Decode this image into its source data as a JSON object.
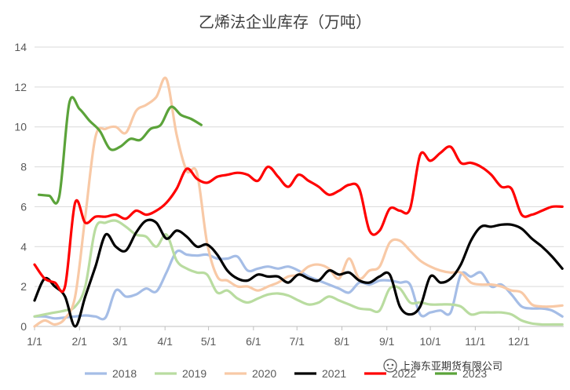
{
  "chart_data": {
    "type": "line",
    "title": "乙烯法企业库存（万吨）",
    "xlabel": "",
    "ylabel": "",
    "ylim": [
      0,
      14
    ],
    "yticks": [
      0,
      2,
      4,
      6,
      8,
      10,
      12,
      14
    ],
    "xlim": [
      0,
      365
    ],
    "xticks": [
      {
        "label": "1/1",
        "day": 0
      },
      {
        "label": "2/1",
        "day": 31
      },
      {
        "label": "3/1",
        "day": 59
      },
      {
        "label": "4/1",
        "day": 90
      },
      {
        "label": "5/1",
        "day": 120
      },
      {
        "label": "6/1",
        "day": 151
      },
      {
        "label": "7/1",
        "day": 181
      },
      {
        "label": "8/1",
        "day": 212
      },
      {
        "label": "9/1",
        "day": 243
      },
      {
        "label": "10/1",
        "day": 273
      },
      {
        "label": "11/1",
        "day": 304
      },
      {
        "label": "12/1",
        "day": 334
      }
    ],
    "grid": "horizontal",
    "legend_position": "bottom",
    "series": [
      {
        "name": "2018",
        "color": "#a5bde6",
        "x": [
          0,
          7,
          14,
          21,
          28,
          35,
          42,
          49,
          56,
          63,
          70,
          77,
          84,
          91,
          98,
          105,
          112,
          119,
          126,
          133,
          140,
          147,
          154,
          161,
          168,
          175,
          182,
          189,
          196,
          203,
          210,
          217,
          224,
          231,
          238,
          245,
          252,
          259,
          266,
          273,
          280,
          287,
          294,
          301,
          308,
          315,
          322,
          329,
          336,
          343,
          350,
          357,
          364
        ],
        "y": [
          0.5,
          0.5,
          0.4,
          0.45,
          0.5,
          0.55,
          0.5,
          0.45,
          1.8,
          1.5,
          1.6,
          1.9,
          1.75,
          2.7,
          3.75,
          3.6,
          3.55,
          3.6,
          3.4,
          3.4,
          3.5,
          2.8,
          2.9,
          3.0,
          2.9,
          3.0,
          2.8,
          2.5,
          2.3,
          2.1,
          1.9,
          1.7,
          2.2,
          2.1,
          2.3,
          2.3,
          2.2,
          2.1,
          0.6,
          0.7,
          0.8,
          0.7,
          2.6,
          2.5,
          2.7,
          2.0,
          2.1,
          1.6,
          1.0,
          0.9,
          0.9,
          0.8,
          0.5
        ]
      },
      {
        "name": "2019",
        "color": "#b9dca0",
        "x": [
          0,
          7,
          14,
          21,
          28,
          35,
          42,
          49,
          56,
          63,
          70,
          77,
          84,
          91,
          98,
          105,
          112,
          119,
          126,
          133,
          140,
          147,
          154,
          161,
          168,
          175,
          182,
          189,
          196,
          203,
          210,
          217,
          224,
          231,
          238,
          245,
          252,
          259,
          266,
          273,
          280,
          287,
          294,
          301,
          308,
          315,
          322,
          329,
          336,
          343,
          350,
          357,
          364
        ],
        "y": [
          0.5,
          0.6,
          0.7,
          0.8,
          1.0,
          2.0,
          4.9,
          5.2,
          5.3,
          5.0,
          4.6,
          4.5,
          4.0,
          4.6,
          3.3,
          2.9,
          2.7,
          2.6,
          1.7,
          1.8,
          1.4,
          1.2,
          1.4,
          1.6,
          1.65,
          1.55,
          1.3,
          1.1,
          1.2,
          1.5,
          1.3,
          1.1,
          0.9,
          0.85,
          0.8,
          1.9,
          1.9,
          1.2,
          1.2,
          1.1,
          1.1,
          1.1,
          1.0,
          0.6,
          0.7,
          0.7,
          0.7,
          0.6,
          0.3,
          0.15,
          0.1,
          0.1,
          0.1
        ]
      },
      {
        "name": "2020",
        "color": "#f8c9a6",
        "x": [
          0,
          7,
          14,
          21,
          28,
          35,
          42,
          49,
          56,
          63,
          70,
          77,
          84,
          91,
          98,
          105,
          112,
          119,
          126,
          133,
          140,
          147,
          154,
          161,
          168,
          175,
          182,
          189,
          196,
          203,
          210,
          217,
          224,
          231,
          238,
          245,
          252,
          259,
          266,
          273,
          280,
          287,
          294,
          301,
          308,
          315,
          322,
          329,
          336,
          343,
          350,
          357,
          364
        ],
        "y": [
          0.0,
          0.3,
          0.1,
          0.4,
          1.5,
          5.5,
          9.5,
          9.9,
          10.0,
          9.7,
          10.8,
          11.1,
          11.5,
          12.4,
          9.6,
          7.8,
          7.7,
          4.2,
          2.5,
          2.3,
          2.0,
          2.0,
          1.8,
          2.0,
          2.2,
          2.5,
          2.6,
          3.0,
          3.1,
          2.9,
          2.4,
          3.4,
          2.4,
          2.8,
          3.0,
          4.2,
          4.3,
          3.8,
          3.3,
          3.0,
          2.8,
          2.7,
          2.7,
          2.2,
          2.1,
          2.1,
          2.0,
          1.8,
          1.7,
          1.1,
          1.0,
          1.0,
          1.05
        ]
      },
      {
        "name": "2021",
        "color": "#000000",
        "x": [
          0,
          7,
          14,
          21,
          28,
          35,
          42,
          49,
          56,
          63,
          70,
          77,
          84,
          91,
          98,
          105,
          112,
          119,
          126,
          133,
          140,
          147,
          154,
          161,
          168,
          175,
          182,
          189,
          196,
          203,
          210,
          217,
          224,
          231,
          238,
          245,
          252,
          259,
          266,
          273,
          280,
          287,
          294,
          301,
          308,
          315,
          322,
          329,
          336,
          343,
          350,
          357,
          364
        ],
        "y": [
          1.3,
          2.4,
          2.0,
          1.5,
          0.0,
          1.5,
          3.0,
          4.6,
          4.0,
          3.8,
          4.7,
          5.3,
          5.2,
          4.4,
          4.8,
          4.5,
          4.0,
          4.1,
          3.6,
          2.8,
          2.4,
          2.3,
          2.6,
          2.5,
          2.5,
          2.2,
          2.6,
          2.4,
          2.3,
          2.8,
          2.6,
          2.7,
          2.3,
          2.2,
          2.5,
          2.6,
          1.0,
          0.6,
          1.0,
          2.5,
          2.2,
          2.4,
          3.1,
          4.3,
          5.0,
          5.0,
          5.1,
          5.1,
          4.9,
          4.4,
          4.0,
          3.5,
          2.9
        ]
      },
      {
        "name": "2022",
        "color": "#ff0000",
        "x": [
          0,
          7,
          14,
          21,
          28,
          35,
          42,
          49,
          56,
          63,
          70,
          77,
          84,
          91,
          98,
          105,
          112,
          119,
          126,
          133,
          140,
          147,
          154,
          161,
          168,
          175,
          182,
          189,
          196,
          203,
          210,
          217,
          224,
          231,
          238,
          245,
          252,
          259,
          266,
          273,
          280,
          287,
          294,
          301,
          308,
          315,
          322,
          329,
          336,
          343,
          350,
          357,
          364
        ],
        "y": [
          3.1,
          2.4,
          2.2,
          2.0,
          6.2,
          5.2,
          5.5,
          5.5,
          5.6,
          5.4,
          5.8,
          5.6,
          5.8,
          6.2,
          6.9,
          7.9,
          7.4,
          7.2,
          7.5,
          7.6,
          7.7,
          7.6,
          7.3,
          8.0,
          7.5,
          7.0,
          7.6,
          7.3,
          7.0,
          6.6,
          6.8,
          7.1,
          6.9,
          4.8,
          4.8,
          5.9,
          5.8,
          5.9,
          8.6,
          8.3,
          8.7,
          9.0,
          8.2,
          8.2,
          8.0,
          7.6,
          7.0,
          6.9,
          5.6,
          5.6,
          5.8,
          6.0,
          6.0
        ]
      },
      {
        "name": "2023",
        "color": "#5ba33a",
        "x": [
          3,
          10,
          17,
          24,
          31,
          38,
          45,
          52,
          59,
          66,
          73,
          80,
          87,
          94,
          101,
          108,
          115
        ],
        "y": [
          6.6,
          6.55,
          6.5,
          11.2,
          10.9,
          10.3,
          9.8,
          8.9,
          9.0,
          9.4,
          9.35,
          9.9,
          10.1,
          11.0,
          10.6,
          10.4,
          10.1
        ]
      }
    ]
  },
  "watermark": {
    "icon": "wechat-icon",
    "text": "上海东亚期货有限公司"
  }
}
